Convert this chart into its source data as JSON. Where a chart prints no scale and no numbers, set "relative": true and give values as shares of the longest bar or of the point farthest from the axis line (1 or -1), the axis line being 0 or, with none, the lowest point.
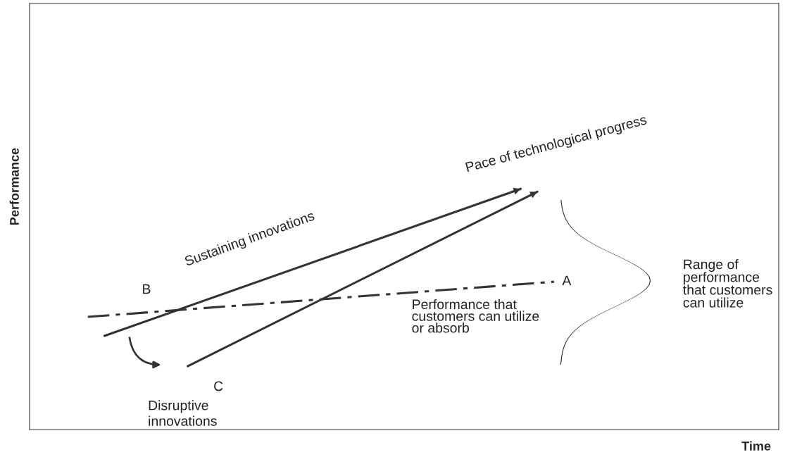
{
  "chart_data": {
    "type": "line",
    "relative": true,
    "xlabel": "Time",
    "ylabel": "Performance",
    "legend": false,
    "categories": [
      null,
      null,
      null,
      null,
      null,
      null,
      null,
      null,
      null,
      null,
      null,
      null,
      null,
      null,
      null,
      null,
      null,
      null,
      null,
      null,
      null,
      null,
      null,
      null,
      null,
      null,
      null,
      null,
      null,
      null,
      null,
      null,
      null,
      null,
      null,
      null,
      null,
      null,
      null,
      null,
      null,
      null,
      null,
      null,
      null
    ],
    "series": [
      {
        "color": "#333333",
        "line_style": "solid",
        "values": [
          null,
          null,
          null,
          null,
          0.389,
          null,
          null,
          null,
          null,
          null,
          null,
          null,
          null,
          null,
          null,
          null,
          null,
          null,
          null,
          null,
          null,
          null,
          null,
          null,
          null,
          null,
          null,
          null,
          null,
          1.0,
          null,
          null,
          null,
          null,
          null,
          null,
          null,
          null,
          null,
          null,
          null,
          null,
          null,
          null,
          null
        ]
      },
      {
        "color": "#333333",
        "line_style": "solid",
        "values": [
          null,
          null,
          null,
          null,
          null,
          null,
          null,
          null,
          null,
          0.263,
          null,
          null,
          null,
          null,
          null,
          null,
          null,
          null,
          null,
          null,
          null,
          null,
          null,
          null,
          null,
          null,
          null,
          null,
          null,
          null,
          0.988,
          null,
          null,
          null,
          null,
          null,
          null,
          null,
          null,
          null,
          null,
          null,
          null,
          null,
          null
        ]
      },
      {
        "color": "#333333",
        "line_style": "dashed",
        "values": [
          null,
          null,
          null,
          0.468,
          null,
          null,
          null,
          null,
          null,
          null,
          null,
          null,
          null,
          null,
          null,
          null,
          null,
          null,
          null,
          null,
          null,
          null,
          null,
          null,
          null,
          null,
          null,
          null,
          null,
          null,
          null,
          0.614,
          null,
          null,
          null,
          null,
          null,
          null,
          null,
          null,
          null,
          null,
          null,
          null,
          null
        ]
      }
    ],
    "annotations": [
      "Pace of technological progress",
      "Sustaining innovations",
      "B",
      "A",
      "C",
      "Performance that\ncustomers can utilize\nor absorb",
      "Range of\nperformance\nthat customers\ncan utilize",
      "Disruptive\ninnovations"
    ]
  }
}
